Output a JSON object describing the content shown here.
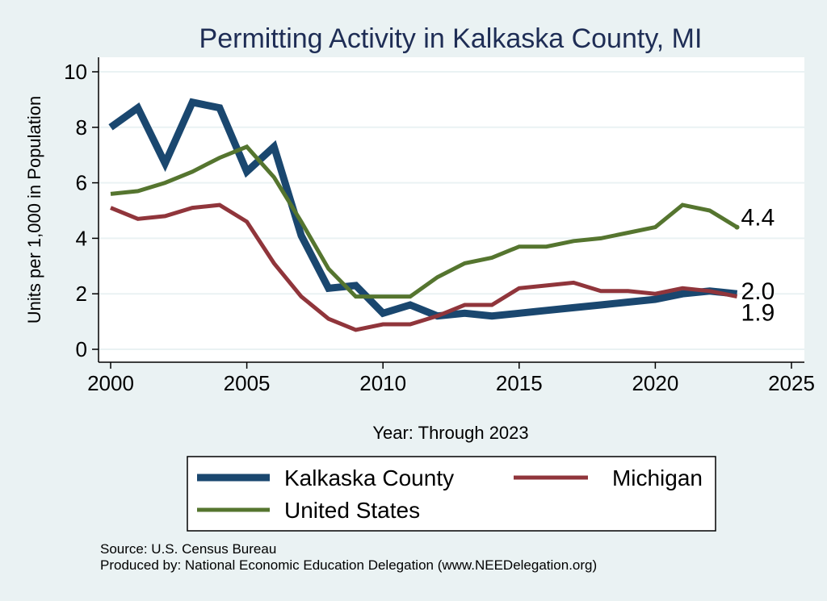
{
  "chart_data": {
    "type": "line",
    "title": "Permitting Activity in Kalkaska County, MI",
    "xlabel": "Year: Through 2023",
    "ylabel": "Units per 1,000 in Population",
    "xlim": [
      2000,
      2025
    ],
    "ylim": [
      0,
      10
    ],
    "xticks": [
      "2000",
      "2005",
      "2010",
      "2015",
      "2020",
      "2025"
    ],
    "yticks": [
      "0",
      "2",
      "4",
      "6",
      "8",
      "10"
    ],
    "grid": true,
    "legend_position": "bottom",
    "x": [
      2000,
      2001,
      2002,
      2003,
      2004,
      2005,
      2006,
      2007,
      2008,
      2009,
      2010,
      2011,
      2012,
      2013,
      2014,
      2015,
      2016,
      2017,
      2018,
      2019,
      2020,
      2021,
      2022,
      2023
    ],
    "series": [
      {
        "name": "Kalkaska County",
        "color": "#1a476f",
        "width": 9,
        "values": [
          8.0,
          8.7,
          6.7,
          8.9,
          8.7,
          6.4,
          7.3,
          4.1,
          2.2,
          2.3,
          1.3,
          1.6,
          1.2,
          1.3,
          1.2,
          1.3,
          1.4,
          1.5,
          1.6,
          1.7,
          1.8,
          2.0,
          2.1,
          2.0
        ]
      },
      {
        "name": "Michigan",
        "color": "#90353b",
        "width": 5,
        "values": [
          5.1,
          4.7,
          4.8,
          5.1,
          5.2,
          4.6,
          3.1,
          1.9,
          1.1,
          0.7,
          0.9,
          0.9,
          1.2,
          1.6,
          1.6,
          2.2,
          2.3,
          2.4,
          2.1,
          2.1,
          2.0,
          2.2,
          2.1,
          1.9
        ]
      },
      {
        "name": "United States",
        "color": "#55752f",
        "width": 5,
        "values": [
          5.6,
          5.7,
          6.0,
          6.4,
          6.9,
          7.3,
          6.2,
          4.6,
          2.9,
          1.9,
          1.9,
          1.9,
          2.6,
          3.1,
          3.3,
          3.7,
          3.7,
          3.9,
          4.0,
          4.2,
          4.4,
          5.2,
          5.0,
          4.4
        ]
      }
    ],
    "end_labels": [
      {
        "series": "United States",
        "text": "4.4"
      },
      {
        "series": "Kalkaska County",
        "text": "2.0"
      },
      {
        "series": "Michigan",
        "text": "1.9"
      }
    ]
  },
  "footnotes": {
    "source": "Source: U.S. Census Bureau",
    "producer": "Produced by: National Economic Education Delegation (www.NEEDelegation.org)"
  }
}
